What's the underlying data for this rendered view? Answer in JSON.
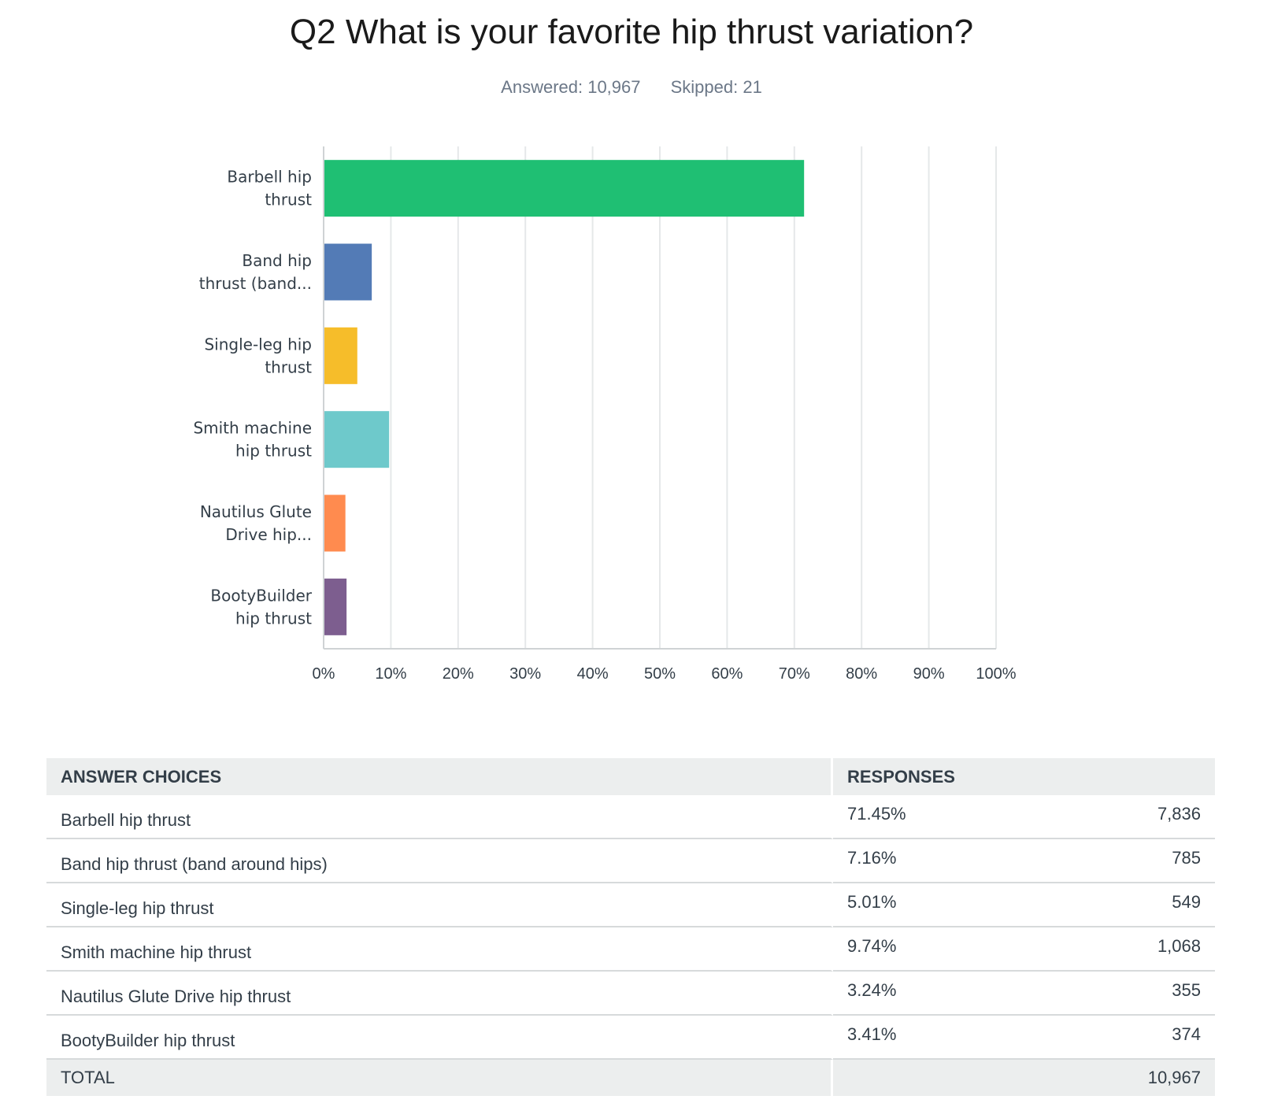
{
  "header": {
    "title": "Q2 What is your favorite hip thrust variation?",
    "answered": "Answered: 10,967",
    "skipped": "Skipped: 21"
  },
  "chart_data": {
    "type": "bar",
    "orientation": "horizontal",
    "categories": [
      [
        "Barbell hip",
        "thrust"
      ],
      [
        "Band hip",
        "thrust (band..."
      ],
      [
        "Single-leg hip",
        "thrust"
      ],
      [
        "Smith machine",
        "hip thrust"
      ],
      [
        "Nautilus Glute",
        "Drive hip..."
      ],
      [
        "BootyBuilder",
        "hip thrust"
      ]
    ],
    "values": [
      71.45,
      7.16,
      5.01,
      9.74,
      3.24,
      3.41
    ],
    "colors": [
      "#1fbf73",
      "#537bb6",
      "#f6bd2a",
      "#6ec9cb",
      "#ff8b4f",
      "#7d5e8f"
    ],
    "xlim": [
      0,
      100
    ],
    "xticks": [
      "0%",
      "10%",
      "20%",
      "30%",
      "40%",
      "50%",
      "60%",
      "70%",
      "80%",
      "90%",
      "100%"
    ],
    "grid": true
  },
  "table": {
    "headers": {
      "choice": "ANSWER CHOICES",
      "responses": "RESPONSES"
    },
    "rows": [
      {
        "choice": "Barbell hip thrust",
        "percent": "71.45%",
        "count": "7,836"
      },
      {
        "choice": "Band hip thrust (band around hips)",
        "percent": "7.16%",
        "count": "785"
      },
      {
        "choice": "Single-leg hip thrust",
        "percent": "5.01%",
        "count": "549"
      },
      {
        "choice": "Smith machine hip thrust",
        "percent": "9.74%",
        "count": "1,068"
      },
      {
        "choice": "Nautilus Glute Drive hip thrust",
        "percent": "3.24%",
        "count": "355"
      },
      {
        "choice": "BootyBuilder hip thrust",
        "percent": "3.41%",
        "count": "374"
      }
    ],
    "total_label": "TOTAL",
    "total_value": "10,967"
  }
}
